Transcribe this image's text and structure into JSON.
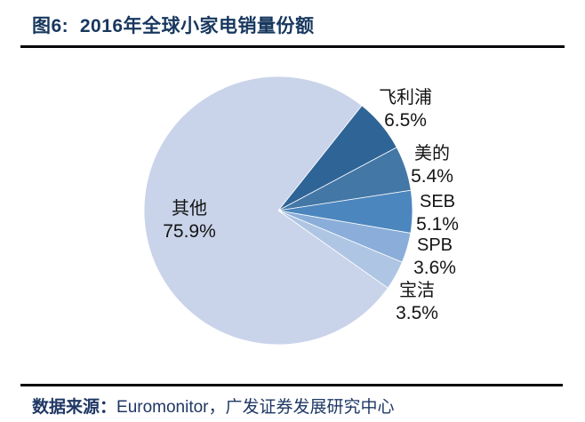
{
  "figure": {
    "title": "图6:  2016年全球小家电销量份额"
  },
  "footer": {
    "label": "数据来源：",
    "source": "Euromonitor，广发证券发展研究中心"
  },
  "chart_data": {
    "type": "pie",
    "title": "2016年全球小家电销量份额",
    "unit": "%",
    "legend": "none",
    "start_angle_deg": 38.5,
    "slices": [
      {
        "name": "飞利浦",
        "value": 6.5,
        "color": "#2F6496"
      },
      {
        "name": "美的",
        "value": 5.4,
        "color": "#4377A6"
      },
      {
        "name": "SEB",
        "value": 5.1,
        "color": "#4C86BE"
      },
      {
        "name": "SPB",
        "value": 3.6,
        "color": "#8AAED9"
      },
      {
        "name": "宝洁",
        "value": 3.5,
        "color": "#AFC5E4"
      },
      {
        "name": "其他",
        "value": 75.9,
        "color": "#C9D4EA"
      }
    ]
  }
}
